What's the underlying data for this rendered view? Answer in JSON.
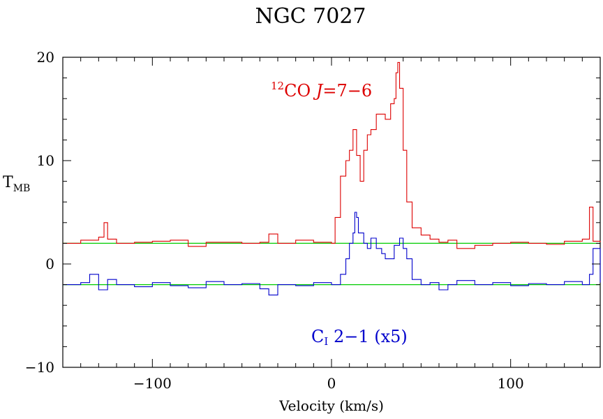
{
  "chart_data": {
    "type": "line",
    "title": "NGC 7027",
    "xlabel": "Velocity (km/s)",
    "ylabel": "T",
    "ylabel_sub": "MB",
    "xlim": [
      -150,
      150
    ],
    "ylim": [
      -10,
      20
    ],
    "xticks": [
      -100,
      0,
      100
    ],
    "yticks": [
      -10,
      0,
      10,
      20
    ],
    "baselines": [
      2,
      -2
    ],
    "baseline_color": "#00cc00",
    "series": [
      {
        "name_sup": "12",
        "name_main": "CO ",
        "name_italic": "J",
        "name_rest": "=7−6",
        "color": "#dd0000",
        "x": [
          -150,
          -140,
          -130,
          -127,
          -125,
          -120,
          -110,
          -100,
          -90,
          -80,
          -70,
          -60,
          -50,
          -40,
          -35,
          -30,
          -20,
          -10,
          0,
          2,
          5,
          8,
          10,
          12,
          14,
          16,
          18,
          20,
          22,
          25,
          28,
          30,
          33,
          35,
          36,
          37,
          38,
          40,
          42,
          45,
          50,
          55,
          60,
          65,
          70,
          80,
          90,
          100,
          110,
          120,
          130,
          140,
          144,
          146,
          150
        ],
        "values": [
          2,
          2.3,
          2.6,
          4,
          2.4,
          2.0,
          2.1,
          2.2,
          2.3,
          1.7,
          2.1,
          2.1,
          2.0,
          2.1,
          2.9,
          2.0,
          2.3,
          2.1,
          2.0,
          4.5,
          8.5,
          10.0,
          11.0,
          13.0,
          10.5,
          8.0,
          11.0,
          12.5,
          13.0,
          14.5,
          14.5,
          14.0,
          15.5,
          16.0,
          18.5,
          19.5,
          17.0,
          11.0,
          6.0,
          3.5,
          2.8,
          2.4,
          2.1,
          2.3,
          1.5,
          1.8,
          2.0,
          2.1,
          2.0,
          1.9,
          2.2,
          2.4,
          5.5,
          2.2,
          2.1
        ]
      },
      {
        "name_main": "C",
        "name_sub": "I",
        "name_rest": " 2−1 (x5)",
        "color": "#0000cc",
        "x": [
          -150,
          -140,
          -135,
          -130,
          -125,
          -120,
          -110,
          -100,
          -90,
          -80,
          -70,
          -60,
          -50,
          -40,
          -35,
          -30,
          -20,
          -10,
          0,
          5,
          8,
          10,
          12,
          13,
          14,
          15,
          18,
          20,
          22,
          25,
          28,
          30,
          35,
          38,
          40,
          42,
          45,
          50,
          55,
          60,
          65,
          70,
          80,
          90,
          100,
          110,
          120,
          130,
          140,
          144,
          146,
          150
        ],
        "values": [
          -2.0,
          -1.8,
          -1.0,
          -2.5,
          -1.5,
          -2.0,
          -2.2,
          -1.8,
          -2.1,
          -2.3,
          -1.7,
          -2.0,
          -1.9,
          -2.4,
          -3.0,
          -2.0,
          -2.1,
          -1.8,
          -2.0,
          -1.0,
          0.5,
          2.0,
          3.0,
          5.0,
          4.5,
          3.0,
          2.0,
          1.5,
          2.5,
          1.5,
          1.0,
          0.5,
          1.8,
          2.5,
          1.5,
          0.5,
          -1.5,
          -2.0,
          -1.8,
          -2.5,
          -2.0,
          -1.6,
          -2.0,
          -1.8,
          -2.1,
          -1.9,
          -2.0,
          -1.7,
          -2.0,
          -1.0,
          1.5,
          -1.8
        ]
      }
    ]
  }
}
